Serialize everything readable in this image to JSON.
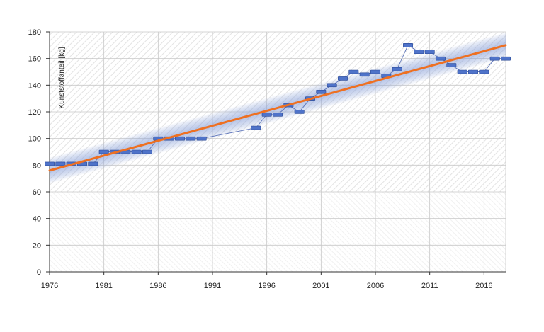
{
  "chart_data": {
    "type": "line",
    "ylabel": "Kunststoffanteil [kg]",
    "xlim": [
      1976,
      2018
    ],
    "ylim": [
      0,
      180
    ],
    "x_ticks": [
      "1976",
      "1981",
      "1986",
      "1991",
      "1996",
      "2001",
      "2006",
      "2011",
      "2016"
    ],
    "y_ticks": [
      "0",
      "20",
      "40",
      "60",
      "80",
      "100",
      "120",
      "140",
      "160",
      "180"
    ],
    "grid": true,
    "series": [
      {
        "kind": "data",
        "points": [
          {
            "x": 1976,
            "y": 81
          },
          {
            "x": 1977,
            "y": 81
          },
          {
            "x": 1978,
            "y": 81
          },
          {
            "x": 1979,
            "y": 81
          },
          {
            "x": 1980,
            "y": 81
          },
          {
            "x": 1981,
            "y": 90
          },
          {
            "x": 1982,
            "y": 90
          },
          {
            "x": 1983,
            "y": 90
          },
          {
            "x": 1984,
            "y": 90
          },
          {
            "x": 1985,
            "y": 90
          },
          {
            "x": 1986,
            "y": 100
          },
          {
            "x": 1987,
            "y": 100
          },
          {
            "x": 1988,
            "y": 100
          },
          {
            "x": 1989,
            "y": 100
          },
          {
            "x": 1990,
            "y": 100
          },
          {
            "x": 1995,
            "y": 108
          },
          {
            "x": 1996,
            "y": 118
          },
          {
            "x": 1997,
            "y": 118
          },
          {
            "x": 1998,
            "y": 125
          },
          {
            "x": 1999,
            "y": 120
          },
          {
            "x": 2000,
            "y": 130
          },
          {
            "x": 2001,
            "y": 135
          },
          {
            "x": 2002,
            "y": 140
          },
          {
            "x": 2003,
            "y": 145
          },
          {
            "x": 2004,
            "y": 150
          },
          {
            "x": 2005,
            "y": 148
          },
          {
            "x": 2006,
            "y": 150
          },
          {
            "x": 2007,
            "y": 147
          },
          {
            "x": 2008,
            "y": 152
          },
          {
            "x": 2009,
            "y": 170
          },
          {
            "x": 2010,
            "y": 165
          },
          {
            "x": 2011,
            "y": 165
          },
          {
            "x": 2012,
            "y": 160
          },
          {
            "x": 2013,
            "y": 155
          },
          {
            "x": 2014,
            "y": 150
          },
          {
            "x": 2015,
            "y": 150
          },
          {
            "x": 2016,
            "y": 150
          },
          {
            "x": 2017,
            "y": 160
          },
          {
            "x": 2018,
            "y": 160
          }
        ]
      },
      {
        "kind": "trend",
        "points": [
          {
            "x": 1976,
            "y": 76
          },
          {
            "x": 2018,
            "y": 170
          }
        ]
      }
    ],
    "colors": {
      "trend": "#ee7022",
      "data_line": "#5a72b8",
      "marker_fill": "#4f73c9",
      "marker_stroke": "#2b4a96",
      "band": "#8ea8e0",
      "grid": "#c8c8c8",
      "axis": "#333333",
      "hatch_upper": "#e6e6e6",
      "hatch_lower": "#ececec"
    }
  }
}
